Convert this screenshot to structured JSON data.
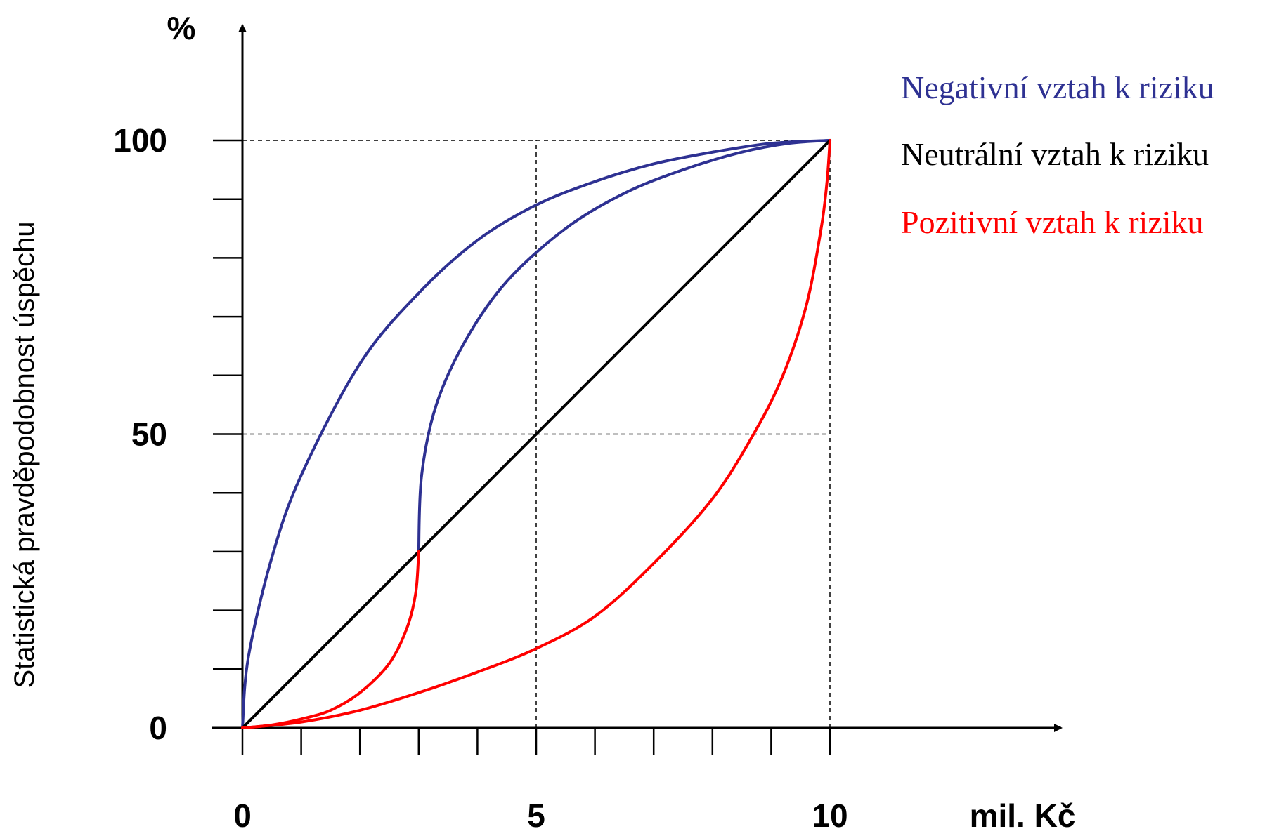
{
  "chart_data": {
    "type": "line",
    "xlabel": "mil. Kč",
    "ylabel": "Statistická pravděpodobnost úspěchu",
    "y_unit": "%",
    "xlim": [
      0,
      10
    ],
    "ylim": [
      0,
      100
    ],
    "x_tick_labels": [
      "0",
      "5",
      "10"
    ],
    "y_tick_labels": [
      "0",
      "50",
      "100"
    ],
    "x_minor_ticks": [
      0,
      1,
      2,
      3,
      4,
      5,
      6,
      7,
      8,
      9,
      10
    ],
    "y_minor_ticks": [
      0,
      10,
      20,
      30,
      40,
      50,
      60,
      70,
      80,
      90,
      100
    ],
    "reference_lines": [
      {
        "orientation": "horizontal",
        "value": 100,
        "style": "dashed"
      },
      {
        "orientation": "horizontal",
        "value": 50,
        "style": "dashed"
      },
      {
        "orientation": "vertical",
        "value": 5,
        "style": "dashed"
      },
      {
        "orientation": "vertical",
        "value": 10,
        "style": "dashed"
      }
    ],
    "legend": [
      {
        "label": "Negativní vztah k riziku",
        "color": "#2e3192"
      },
      {
        "label": "Neutrální vztah k riziku",
        "color": "#000000"
      },
      {
        "label": "Pozitivní vztah k riziku",
        "color": "#ff0000"
      }
    ],
    "legend_position": "top-right",
    "grid": false,
    "series": [
      {
        "group": "negative",
        "color": "#2e3192",
        "points": [
          [
            0,
            0
          ],
          [
            0.1,
            12
          ],
          [
            0.5,
            29
          ],
          [
            1,
            43
          ],
          [
            2,
            62
          ],
          [
            3,
            74
          ],
          [
            4,
            83
          ],
          [
            5,
            89
          ],
          [
            6,
            93
          ],
          [
            7,
            96
          ],
          [
            8,
            98
          ],
          [
            9,
            99.5
          ],
          [
            10,
            100
          ]
        ]
      },
      {
        "group": "negative",
        "color": "#2e3192",
        "points": [
          [
            3,
            30
          ],
          [
            3.05,
            43
          ],
          [
            3.3,
            55
          ],
          [
            3.8,
            66
          ],
          [
            4.5,
            76
          ],
          [
            5.5,
            85
          ],
          [
            6.5,
            91
          ],
          [
            7.5,
            95
          ],
          [
            8.5,
            98
          ],
          [
            9.3,
            99.5
          ],
          [
            10,
            100
          ]
        ]
      },
      {
        "group": "neutral",
        "color": "#000000",
        "points": [
          [
            0,
            0
          ],
          [
            10,
            100
          ]
        ]
      },
      {
        "group": "positive",
        "color": "#ff0000",
        "points": [
          [
            0,
            0
          ],
          [
            0.5,
            0.5
          ],
          [
            1,
            1.5
          ],
          [
            1.5,
            3
          ],
          [
            2,
            6
          ],
          [
            2.5,
            11
          ],
          [
            2.8,
            17
          ],
          [
            2.95,
            23
          ],
          [
            3,
            30
          ]
        ]
      },
      {
        "group": "positive",
        "color": "#ff0000",
        "points": [
          [
            0,
            0
          ],
          [
            1,
            1
          ],
          [
            2,
            3
          ],
          [
            3,
            6
          ],
          [
            4,
            9.5
          ],
          [
            5,
            13.5
          ],
          [
            6,
            19
          ],
          [
            7,
            28
          ],
          [
            8,
            39
          ],
          [
            8.7,
            50
          ],
          [
            9.2,
            60
          ],
          [
            9.6,
            72
          ],
          [
            9.85,
            85
          ],
          [
            9.95,
            93
          ],
          [
            10,
            100
          ]
        ]
      }
    ]
  }
}
